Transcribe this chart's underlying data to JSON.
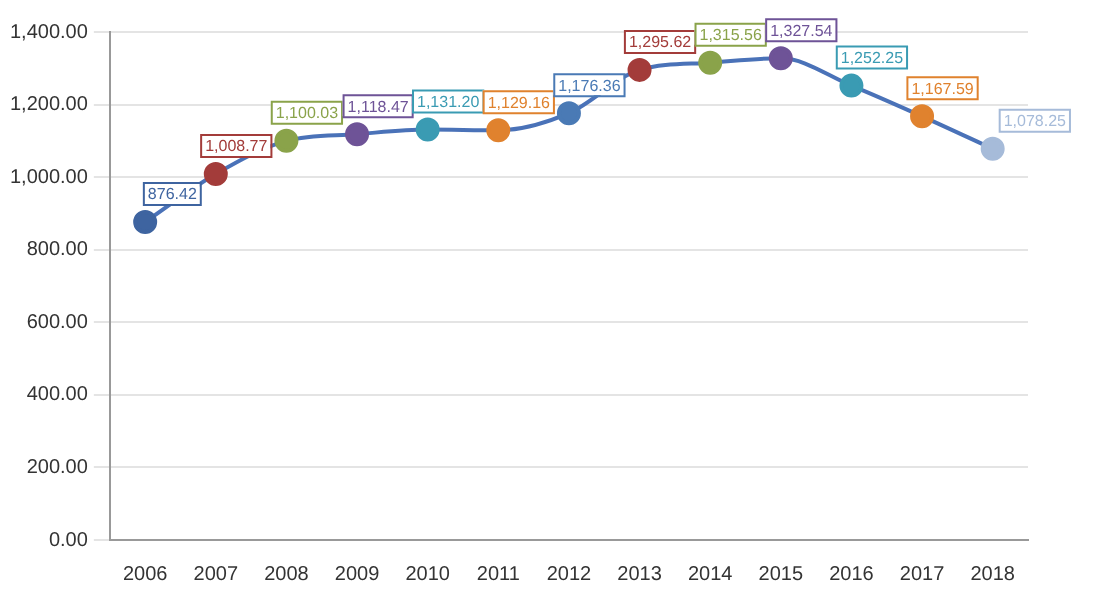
{
  "chart_data": {
    "type": "line",
    "categories": [
      "2006",
      "2007",
      "2008",
      "2009",
      "2010",
      "2011",
      "2012",
      "2013",
      "2014",
      "2015",
      "2016",
      "2017",
      "2018"
    ],
    "series": [
      {
        "color": "#4a72b8",
        "colors": [
          "#3e64a0",
          "#a33c3a",
          "#8aa34a",
          "#6e5397",
          "#3a9bb3",
          "#e0822e",
          "#4a7ab5",
          "#a33c3a",
          "#8aa34a",
          "#6e5397",
          "#3a9bb3",
          "#e0822e",
          "#a6bbd9"
        ],
        "values": [
          876.42,
          1008.77,
          1100.03,
          1118.47,
          1131.2,
          1129.16,
          1176.36,
          1295.62,
          1315.56,
          1327.54,
          1252.25,
          1167.59,
          1078.25
        ],
        "value_labels": [
          "876.42",
          "1,008.77",
          "1,100.03",
          "1,118.47",
          "1,131.20",
          "1,129.16",
          "1,176.36",
          "1,295.62",
          "1,315.56",
          "1,327.54",
          "1,252.25",
          "1,167.59",
          "1,078.25"
        ]
      }
    ],
    "ylim": [
      0,
      1400
    ],
    "yticks": [
      {
        "value": 0,
        "label": "0.00"
      },
      {
        "value": 200,
        "label": "200.00"
      },
      {
        "value": 400,
        "label": "400.00"
      },
      {
        "value": 600,
        "label": "600.00"
      },
      {
        "value": 800,
        "label": "800.00"
      },
      {
        "value": 1000,
        "label": "1,000.00"
      },
      {
        "value": 1200,
        "label": "1,200.00"
      },
      {
        "value": 1400,
        "label": "1,400.00"
      }
    ],
    "grid": "y",
    "legend": false,
    "marker": "circle",
    "line_style": "solid"
  }
}
